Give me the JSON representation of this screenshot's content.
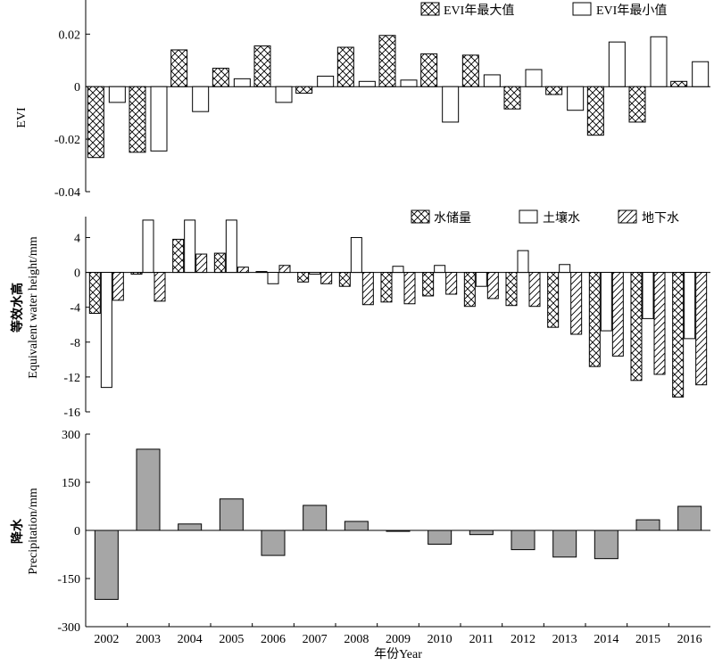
{
  "figure": {
    "xlabel": "年份Year"
  },
  "chart_data": [
    {
      "type": "bar",
      "ylabel": "EVI",
      "ylim": [
        -0.04,
        0.02
      ],
      "yticks": [
        0.02,
        0,
        -0.02,
        -0.04
      ],
      "ytick_labels": [
        "0.02",
        "0",
        "-0.02",
        "-0.04"
      ],
      "categories": [
        "2002",
        "2003",
        "2004",
        "2005",
        "2006",
        "2007",
        "2008",
        "2009",
        "2010",
        "2011",
        "2012",
        "2013",
        "2014",
        "2015",
        "2016"
      ],
      "legend_position": "top-right",
      "series": [
        {
          "name": "EVI年最大值",
          "pattern": "crosshatch",
          "values": [
            -0.027,
            -0.025,
            0.014,
            0.007,
            0.0155,
            -0.0025,
            0.015,
            0.0195,
            0.0125,
            0.012,
            -0.0085,
            -0.003,
            -0.0185,
            -0.0135,
            0.002
          ]
        },
        {
          "name": "EVI年最小值",
          "pattern": "white",
          "values": [
            -0.006,
            -0.0245,
            -0.0095,
            0.003,
            -0.006,
            0.004,
            0.002,
            0.0025,
            -0.0135,
            0.0045,
            0.0065,
            -0.009,
            0.017,
            0.019,
            0.0095
          ]
        }
      ]
    },
    {
      "type": "bar",
      "ylabel": "等效水高 Equivalent water height/mm",
      "ylim": [
        -16,
        6
      ],
      "yticks": [
        4,
        0,
        -4,
        -8,
        -12,
        -16
      ],
      "ytick_labels": [
        "4",
        "0",
        "-4",
        "-8",
        "-12",
        "-16"
      ],
      "categories": [
        "2002",
        "2003",
        "2004",
        "2005",
        "2006",
        "2007",
        "2008",
        "2009",
        "2010",
        "2011",
        "2012",
        "2013",
        "2014",
        "2015",
        "2016"
      ],
      "legend_position": "top-right",
      "series": [
        {
          "name": "水储量",
          "pattern": "crosshatch",
          "values": [
            -4.7,
            -0.2,
            3.8,
            2.2,
            0.1,
            -1.1,
            -1.6,
            -3.4,
            -2.7,
            -3.9,
            -3.8,
            -6.3,
            -10.8,
            -12.4,
            -14.3
          ]
        },
        {
          "name": "土壤水",
          "pattern": "white",
          "values": [
            -13.2,
            6.0,
            6.0,
            6.0,
            -1.3,
            -0.2,
            4.0,
            0.7,
            0.8,
            -1.6,
            2.5,
            0.9,
            -6.7,
            -5.3,
            -7.6
          ]
        },
        {
          "name": "地下水",
          "pattern": "diagonal",
          "values": [
            -3.2,
            -3.3,
            2.1,
            0.6,
            0.8,
            -1.3,
            -3.7,
            -3.6,
            -2.5,
            -3.0,
            -3.9,
            -7.1,
            -9.6,
            -11.7,
            -12.9
          ]
        }
      ]
    },
    {
      "type": "bar",
      "ylabel": "降水 Precipitation/mm",
      "ylim": [
        -300,
        300
      ],
      "yticks": [
        300,
        150,
        0,
        -150,
        -300
      ],
      "ytick_labels": [
        "300",
        "150",
        "0",
        "-150",
        "-300"
      ],
      "categories": [
        "2002",
        "2003",
        "2004",
        "2005",
        "2006",
        "2007",
        "2008",
        "2009",
        "2010",
        "2011",
        "2012",
        "2013",
        "2014",
        "2015",
        "2016"
      ],
      "series": [
        {
          "color": "#a6a6a6",
          "values": [
            -215,
            253,
            20,
            98,
            -78,
            78,
            28,
            -3,
            -43,
            -13,
            -60,
            -83,
            -88,
            33,
            75
          ]
        }
      ]
    }
  ]
}
